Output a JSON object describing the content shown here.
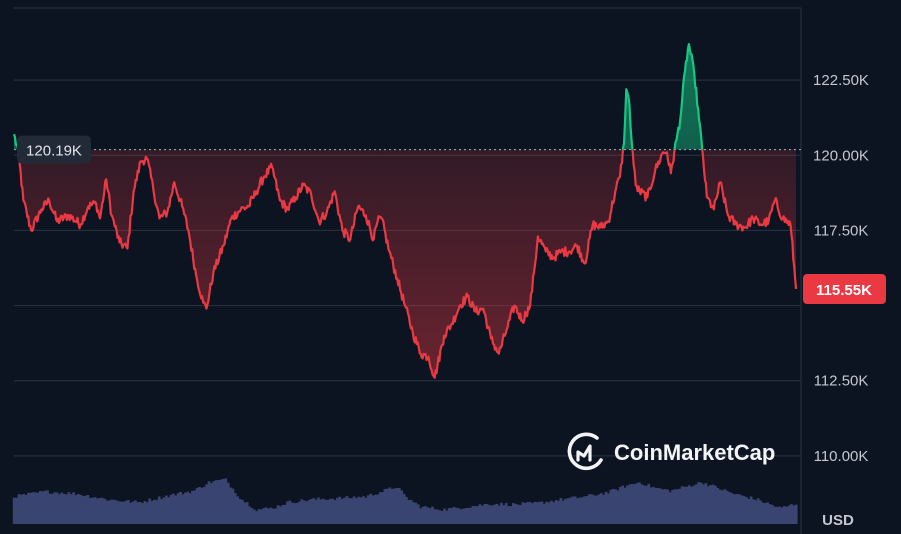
{
  "chart_data": {
    "type": "line",
    "currency": "USD",
    "watermark": "CoinMarketCap",
    "y_ticks": [
      "110.00K",
      "112.50K",
      "117.50K",
      "120.00K",
      "122.50K"
    ],
    "y_tick_values": [
      110000,
      112500,
      117500,
      120000,
      122500
    ],
    "ylim": [
      107400,
      124900
    ],
    "reference": {
      "label": "120.19K",
      "value": 120190
    },
    "current": {
      "label": "115.55K",
      "value": 115550
    },
    "colors": {
      "above": "#16c784",
      "below": "#ea3943",
      "volume": "#3a4470",
      "grid": "#2b3242",
      "background": "#0d1421"
    },
    "price_points": [
      [
        0,
        120700
      ],
      [
        0.6,
        120000
      ],
      [
        1.2,
        118500
      ],
      [
        2.2,
        117500
      ],
      [
        3.5,
        118200
      ],
      [
        4.5,
        118500
      ],
      [
        5.5,
        117800
      ],
      [
        7,
        118000
      ],
      [
        8.5,
        117700
      ],
      [
        9.5,
        118300
      ],
      [
        10.5,
        118400
      ],
      [
        11,
        117900
      ],
      [
        11.8,
        119200
      ],
      [
        12.5,
        118000
      ],
      [
        13.5,
        117100
      ],
      [
        14.5,
        116900
      ],
      [
        15.3,
        118800
      ],
      [
        16.2,
        119800
      ],
      [
        17,
        119900
      ],
      [
        17.8,
        118900
      ],
      [
        18.6,
        117900
      ],
      [
        19.6,
        118100
      ],
      [
        20.5,
        119100
      ],
      [
        21.5,
        118300
      ],
      [
        22.3,
        117500
      ],
      [
        23.3,
        116000
      ],
      [
        24.2,
        115100
      ],
      [
        24.6,
        114900
      ],
      [
        25.5,
        116100
      ],
      [
        26.8,
        117000
      ],
      [
        27.8,
        117900
      ],
      [
        29,
        118200
      ],
      [
        30,
        118300
      ],
      [
        31,
        118800
      ],
      [
        32,
        119300
      ],
      [
        33,
        119600
      ],
      [
        34,
        118500
      ],
      [
        35,
        118200
      ],
      [
        36,
        118600
      ],
      [
        37,
        119000
      ],
      [
        38,
        118700
      ],
      [
        39,
        117800
      ],
      [
        40,
        118100
      ],
      [
        41,
        118800
      ],
      [
        42,
        117500
      ],
      [
        43,
        117200
      ],
      [
        44,
        118300
      ],
      [
        45,
        118000
      ],
      [
        46,
        117200
      ],
      [
        46.5,
        117800
      ],
      [
        47,
        117900
      ],
      [
        48,
        116800
      ],
      [
        49,
        115900
      ],
      [
        50,
        115000
      ],
      [
        51,
        114100
      ],
      [
        52,
        113400
      ],
      [
        53,
        113300
      ],
      [
        53.8,
        112600
      ],
      [
        55,
        114000
      ],
      [
        56,
        114400
      ],
      [
        57,
        115000
      ],
      [
        58,
        115300
      ],
      [
        59,
        114800
      ],
      [
        60,
        114900
      ],
      [
        61,
        113900
      ],
      [
        62,
        113400
      ],
      [
        63,
        114200
      ],
      [
        64,
        115000
      ],
      [
        65,
        114500
      ],
      [
        66,
        115000
      ],
      [
        66.5,
        116100
      ],
      [
        67,
        117300
      ],
      [
        68,
        116800
      ],
      [
        69,
        116600
      ],
      [
        70,
        116800
      ],
      [
        71,
        116800
      ],
      [
        72,
        117000
      ],
      [
        73,
        116400
      ],
      [
        74,
        117700
      ],
      [
        75,
        117600
      ],
      [
        76,
        117800
      ],
      [
        77,
        118900
      ],
      [
        77.5,
        119300
      ],
      [
        78,
        120400
      ],
      [
        78.3,
        122200
      ],
      [
        78.7,
        121700
      ],
      [
        79,
        120400
      ],
      [
        79.5,
        119000
      ],
      [
        80,
        118800
      ],
      [
        81,
        118600
      ],
      [
        82,
        119500
      ],
      [
        83,
        120100
      ],
      [
        83.5,
        120100
      ],
      [
        84,
        119400
      ],
      [
        84.7,
        120500
      ],
      [
        85.2,
        121200
      ],
      [
        85.8,
        122800
      ],
      [
        86.3,
        123700
      ],
      [
        87,
        122700
      ],
      [
        87.6,
        121200
      ],
      [
        88,
        120200
      ],
      [
        88.6,
        118600
      ],
      [
        89.5,
        118200
      ],
      [
        90.3,
        119100
      ],
      [
        91.3,
        118000
      ],
      [
        92.3,
        117700
      ],
      [
        93.5,
        117600
      ],
      [
        94.5,
        117900
      ],
      [
        95.5,
        117700
      ],
      [
        96.5,
        117800
      ],
      [
        97.3,
        118500
      ],
      [
        98.3,
        117900
      ],
      [
        99.3,
        117700
      ],
      [
        100,
        115550
      ]
    ],
    "volume_levels": [
      [
        0,
        0.38
      ],
      [
        4,
        0.45
      ],
      [
        8,
        0.42
      ],
      [
        12,
        0.34
      ],
      [
        16,
        0.3
      ],
      [
        20,
        0.4
      ],
      [
        23,
        0.46
      ],
      [
        25,
        0.58
      ],
      [
        27,
        0.62
      ],
      [
        29,
        0.35
      ],
      [
        31,
        0.2
      ],
      [
        33,
        0.22
      ],
      [
        35,
        0.3
      ],
      [
        38,
        0.34
      ],
      [
        42,
        0.36
      ],
      [
        45,
        0.38
      ],
      [
        47,
        0.45
      ],
      [
        49,
        0.52
      ],
      [
        50,
        0.38
      ],
      [
        52,
        0.24
      ],
      [
        55,
        0.2
      ],
      [
        58,
        0.24
      ],
      [
        61,
        0.28
      ],
      [
        64,
        0.27
      ],
      [
        67,
        0.29
      ],
      [
        70,
        0.34
      ],
      [
        73,
        0.38
      ],
      [
        76,
        0.44
      ],
      [
        78,
        0.52
      ],
      [
        80,
        0.58
      ],
      [
        82,
        0.5
      ],
      [
        84,
        0.46
      ],
      [
        86,
        0.52
      ],
      [
        88,
        0.58
      ],
      [
        90,
        0.5
      ],
      [
        92,
        0.42
      ],
      [
        95,
        0.34
      ],
      [
        98,
        0.22
      ],
      [
        100,
        0.28
      ]
    ]
  }
}
